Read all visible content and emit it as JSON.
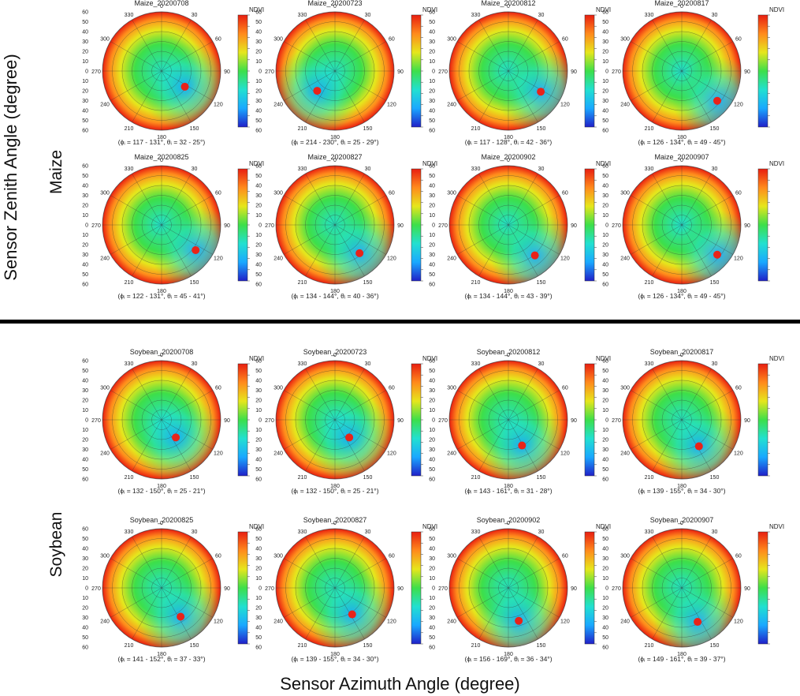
{
  "figure": {
    "y_axis_label": "Sensor Zenith Angle (degree)",
    "x_axis_label": "Sensor Azimuth Angle (degree)",
    "groups": [
      {
        "label": "Maize"
      },
      {
        "label": "Soybean"
      }
    ],
    "colorbar_label": "NDVI",
    "zenith_ticks": [
      "60",
      "50",
      "40",
      "30",
      "20",
      "10",
      "0",
      "10",
      "20",
      "30",
      "40",
      "50",
      "60"
    ],
    "azimuth_ticks": [
      "0",
      "30",
      "60",
      "90",
      "120",
      "150",
      "180",
      "210",
      "240",
      "270",
      "300",
      "330"
    ],
    "colormap": [
      "#2020c8",
      "#1aa8ff",
      "#22e0d0",
      "#3ddf4a",
      "#e6e61c",
      "#ff8a1c",
      "#e81e10"
    ],
    "sun_marker_color": "#e8231a"
  },
  "chart_data": [
    {
      "type": "polar-heatmap",
      "title": "Maize_20200708",
      "caption": "(ϕᵢ = 117 - 131°, θᵢ = 32 - 25°)",
      "sun_azimuth": [
        117,
        131
      ],
      "sun_zenith": [
        32,
        25
      ]
    },
    {
      "type": "polar-heatmap",
      "title": "Maize_20200723",
      "caption": "(ϕᵢ = 214 - 230°, θᵢ = 25 - 29°)",
      "sun_azimuth": [
        214,
        230
      ],
      "sun_zenith": [
        25,
        29
      ]
    },
    {
      "type": "polar-heatmap",
      "title": "Maize_20200812",
      "caption": "(ϕᵢ = 117 - 128°, θᵢ = 42 - 36°)",
      "sun_azimuth": [
        117,
        128
      ],
      "sun_zenith": [
        42,
        36
      ]
    },
    {
      "type": "polar-heatmap",
      "title": "Maize_20200817",
      "caption": "(ϕᵢ = 126 - 134°, θᵢ = 49 - 45°)",
      "sun_azimuth": [
        126,
        134
      ],
      "sun_zenith": [
        49,
        45
      ]
    },
    {
      "type": "polar-heatmap",
      "title": "Maize_20200825",
      "caption": "(ϕᵢ = 122 - 131°, θᵢ = 45 - 41°)",
      "sun_azimuth": [
        122,
        131
      ],
      "sun_zenith": [
        45,
        41
      ]
    },
    {
      "type": "polar-heatmap",
      "title": "Maize_20200827",
      "caption": "(ϕᵢ = 134 - 144°, θᵢ = 40 - 36°)",
      "sun_azimuth": [
        134,
        144
      ],
      "sun_zenith": [
        40,
        36
      ]
    },
    {
      "type": "polar-heatmap",
      "title": "Maize_20200902",
      "caption": "(ϕᵢ = 134 - 144°, θᵢ = 43 - 39°)",
      "sun_azimuth": [
        134,
        144
      ],
      "sun_zenith": [
        43,
        39
      ]
    },
    {
      "type": "polar-heatmap",
      "title": "Maize_20200907",
      "caption": "(ϕᵢ = 126 - 134°, θᵢ = 49 - 45°)",
      "sun_azimuth": [
        126,
        134
      ],
      "sun_zenith": [
        49,
        45
      ]
    },
    {
      "type": "polar-heatmap",
      "title": "Soybean_20200708",
      "caption": "(ϕᵢ = 132 - 150°, θᵢ = 25 - 21°)",
      "sun_azimuth": [
        132,
        150
      ],
      "sun_zenith": [
        25,
        21
      ]
    },
    {
      "type": "polar-heatmap",
      "title": "Soybean_20200723",
      "caption": "(ϕᵢ = 132 - 150°, θᵢ = 25 - 21°)",
      "sun_azimuth": [
        132,
        150
      ],
      "sun_zenith": [
        25,
        21
      ]
    },
    {
      "type": "polar-heatmap",
      "title": "Soybean_20200812",
      "caption": "(ϕᵢ = 143 - 161°, θᵢ = 31 - 28°)",
      "sun_azimuth": [
        143,
        161
      ],
      "sun_zenith": [
        31,
        28
      ]
    },
    {
      "type": "polar-heatmap",
      "title": "Soybean_20200817",
      "caption": "(ϕᵢ = 139 - 155°, θᵢ = 34 - 30°)",
      "sun_azimuth": [
        139,
        155
      ],
      "sun_zenith": [
        34,
        30
      ]
    },
    {
      "type": "polar-heatmap",
      "title": "Soybean_20200825",
      "caption": "(ϕᵢ = 141 - 152°, θᵢ = 37 - 33°)",
      "sun_azimuth": [
        141,
        152
      ],
      "sun_zenith": [
        37,
        33
      ]
    },
    {
      "type": "polar-heatmap",
      "title": "Soybean_20200827",
      "caption": "(ϕᵢ = 139 - 155°, θᵢ = 34 - 30°)",
      "sun_azimuth": [
        139,
        155
      ],
      "sun_zenith": [
        34,
        30
      ]
    },
    {
      "type": "polar-heatmap",
      "title": "Soybean_20200902",
      "caption": "(ϕᵢ = 156 - 169°, θᵢ = 36 - 34°)",
      "sun_azimuth": [
        156,
        169
      ],
      "sun_zenith": [
        36,
        34
      ]
    },
    {
      "type": "polar-heatmap",
      "title": "Soybean_20200907",
      "caption": "(ϕᵢ = 149 - 161°, θᵢ = 39 - 37°)",
      "sun_azimuth": [
        149,
        161
      ],
      "sun_zenith": [
        39,
        37
      ]
    }
  ]
}
